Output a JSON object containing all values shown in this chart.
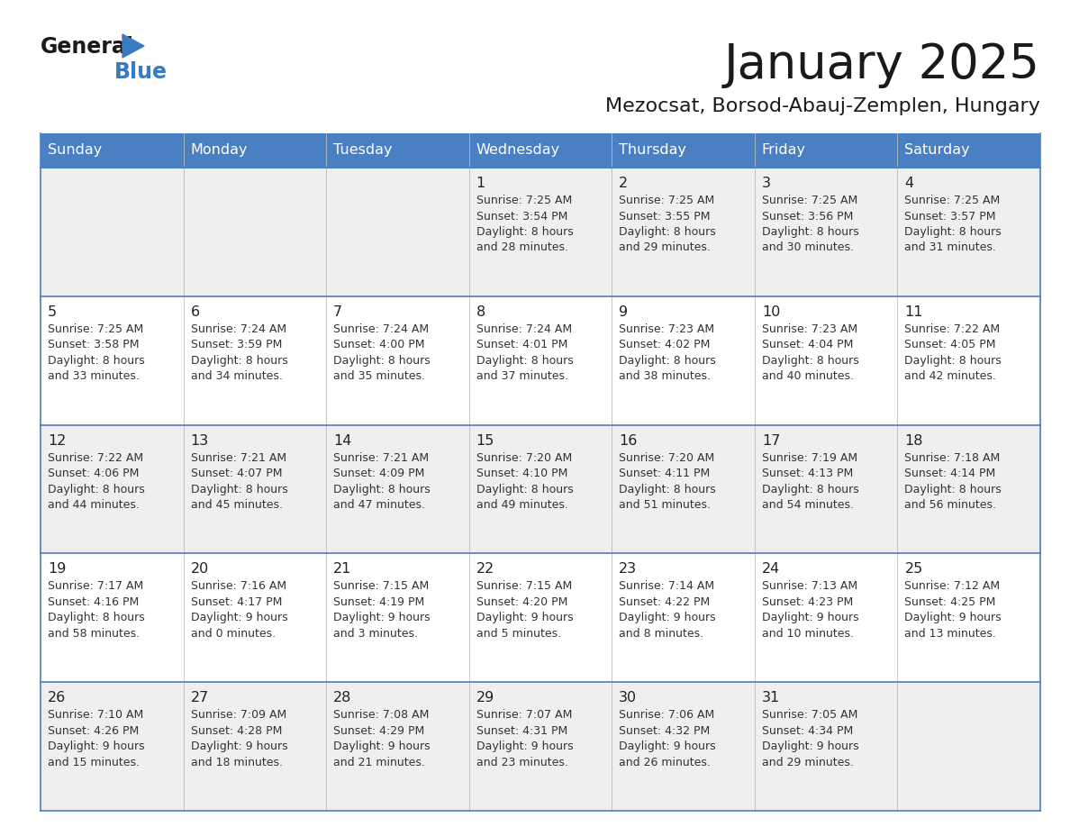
{
  "title": "January 2025",
  "subtitle": "Mezocsat, Borsod-Abauj-Zemplen, Hungary",
  "days_of_week": [
    "Sunday",
    "Monday",
    "Tuesday",
    "Wednesday",
    "Thursday",
    "Friday",
    "Saturday"
  ],
  "header_bg": "#4a7fc1",
  "header_text": "#FFFFFF",
  "cell_bg_white": "#FFFFFF",
  "cell_bg_gray": "#F0F0F0",
  "border_color": "#4a7fc1",
  "text_color": "#222222",
  "day_number_color": "#222222",
  "title_color": "#1a1a1a",
  "subtitle_color": "#1a1a1a",
  "general_color": "#1a1a1a",
  "blue_color": "#3a7abf",
  "info_text_color": "#333333",
  "calendar_data": [
    [
      null,
      null,
      null,
      {
        "day": 1,
        "sunrise": "7:25 AM",
        "sunset": "3:54 PM",
        "daylight_h": "8 hours",
        "daylight_m": "and 28 minutes."
      },
      {
        "day": 2,
        "sunrise": "7:25 AM",
        "sunset": "3:55 PM",
        "daylight_h": "8 hours",
        "daylight_m": "and 29 minutes."
      },
      {
        "day": 3,
        "sunrise": "7:25 AM",
        "sunset": "3:56 PM",
        "daylight_h": "8 hours",
        "daylight_m": "and 30 minutes."
      },
      {
        "day": 4,
        "sunrise": "7:25 AM",
        "sunset": "3:57 PM",
        "daylight_h": "8 hours",
        "daylight_m": "and 31 minutes."
      }
    ],
    [
      {
        "day": 5,
        "sunrise": "7:25 AM",
        "sunset": "3:58 PM",
        "daylight_h": "8 hours",
        "daylight_m": "and 33 minutes."
      },
      {
        "day": 6,
        "sunrise": "7:24 AM",
        "sunset": "3:59 PM",
        "daylight_h": "8 hours",
        "daylight_m": "and 34 minutes."
      },
      {
        "day": 7,
        "sunrise": "7:24 AM",
        "sunset": "4:00 PM",
        "daylight_h": "8 hours",
        "daylight_m": "and 35 minutes."
      },
      {
        "day": 8,
        "sunrise": "7:24 AM",
        "sunset": "4:01 PM",
        "daylight_h": "8 hours",
        "daylight_m": "and 37 minutes."
      },
      {
        "day": 9,
        "sunrise": "7:23 AM",
        "sunset": "4:02 PM",
        "daylight_h": "8 hours",
        "daylight_m": "and 38 minutes."
      },
      {
        "day": 10,
        "sunrise": "7:23 AM",
        "sunset": "4:04 PM",
        "daylight_h": "8 hours",
        "daylight_m": "and 40 minutes."
      },
      {
        "day": 11,
        "sunrise": "7:22 AM",
        "sunset": "4:05 PM",
        "daylight_h": "8 hours",
        "daylight_m": "and 42 minutes."
      }
    ],
    [
      {
        "day": 12,
        "sunrise": "7:22 AM",
        "sunset": "4:06 PM",
        "daylight_h": "8 hours",
        "daylight_m": "and 44 minutes."
      },
      {
        "day": 13,
        "sunrise": "7:21 AM",
        "sunset": "4:07 PM",
        "daylight_h": "8 hours",
        "daylight_m": "and 45 minutes."
      },
      {
        "day": 14,
        "sunrise": "7:21 AM",
        "sunset": "4:09 PM",
        "daylight_h": "8 hours",
        "daylight_m": "and 47 minutes."
      },
      {
        "day": 15,
        "sunrise": "7:20 AM",
        "sunset": "4:10 PM",
        "daylight_h": "8 hours",
        "daylight_m": "and 49 minutes."
      },
      {
        "day": 16,
        "sunrise": "7:20 AM",
        "sunset": "4:11 PM",
        "daylight_h": "8 hours",
        "daylight_m": "and 51 minutes."
      },
      {
        "day": 17,
        "sunrise": "7:19 AM",
        "sunset": "4:13 PM",
        "daylight_h": "8 hours",
        "daylight_m": "and 54 minutes."
      },
      {
        "day": 18,
        "sunrise": "7:18 AM",
        "sunset": "4:14 PM",
        "daylight_h": "8 hours",
        "daylight_m": "and 56 minutes."
      }
    ],
    [
      {
        "day": 19,
        "sunrise": "7:17 AM",
        "sunset": "4:16 PM",
        "daylight_h": "8 hours",
        "daylight_m": "and 58 minutes."
      },
      {
        "day": 20,
        "sunrise": "7:16 AM",
        "sunset": "4:17 PM",
        "daylight_h": "9 hours",
        "daylight_m": "and 0 minutes."
      },
      {
        "day": 21,
        "sunrise": "7:15 AM",
        "sunset": "4:19 PM",
        "daylight_h": "9 hours",
        "daylight_m": "and 3 minutes."
      },
      {
        "day": 22,
        "sunrise": "7:15 AM",
        "sunset": "4:20 PM",
        "daylight_h": "9 hours",
        "daylight_m": "and 5 minutes."
      },
      {
        "day": 23,
        "sunrise": "7:14 AM",
        "sunset": "4:22 PM",
        "daylight_h": "9 hours",
        "daylight_m": "and 8 minutes."
      },
      {
        "day": 24,
        "sunrise": "7:13 AM",
        "sunset": "4:23 PM",
        "daylight_h": "9 hours",
        "daylight_m": "and 10 minutes."
      },
      {
        "day": 25,
        "sunrise": "7:12 AM",
        "sunset": "4:25 PM",
        "daylight_h": "9 hours",
        "daylight_m": "and 13 minutes."
      }
    ],
    [
      {
        "day": 26,
        "sunrise": "7:10 AM",
        "sunset": "4:26 PM",
        "daylight_h": "9 hours",
        "daylight_m": "and 15 minutes."
      },
      {
        "day": 27,
        "sunrise": "7:09 AM",
        "sunset": "4:28 PM",
        "daylight_h": "9 hours",
        "daylight_m": "and 18 minutes."
      },
      {
        "day": 28,
        "sunrise": "7:08 AM",
        "sunset": "4:29 PM",
        "daylight_h": "9 hours",
        "daylight_m": "and 21 minutes."
      },
      {
        "day": 29,
        "sunrise": "7:07 AM",
        "sunset": "4:31 PM",
        "daylight_h": "9 hours",
        "daylight_m": "and 23 minutes."
      },
      {
        "day": 30,
        "sunrise": "7:06 AM",
        "sunset": "4:32 PM",
        "daylight_h": "9 hours",
        "daylight_m": "and 26 minutes."
      },
      {
        "day": 31,
        "sunrise": "7:05 AM",
        "sunset": "4:34 PM",
        "daylight_h": "9 hours",
        "daylight_m": "and 29 minutes."
      },
      null
    ]
  ],
  "row_bg_colors": [
    "#EFEFEF",
    "#FFFFFF",
    "#EFEFEF",
    "#FFFFFF",
    "#EFEFEF"
  ]
}
